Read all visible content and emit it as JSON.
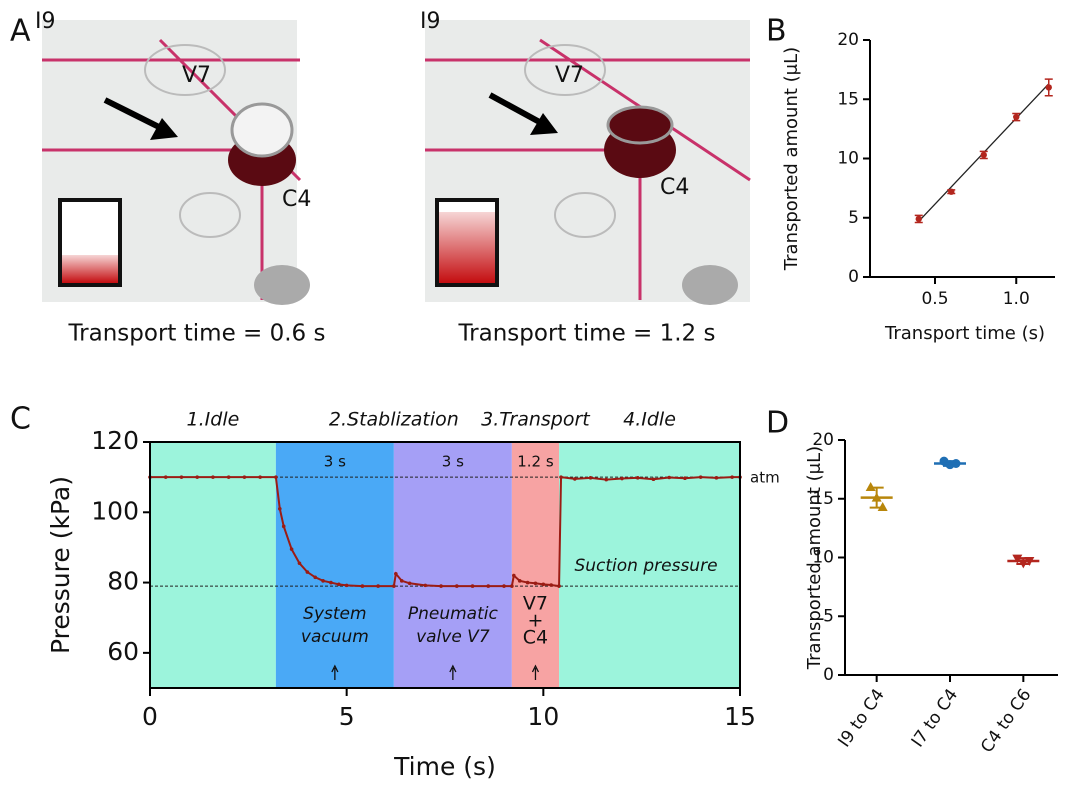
{
  "figure": {
    "panel_labels": [
      "A",
      "B",
      "C",
      "D"
    ],
    "photos": [
      {
        "labels": [
          "I9",
          "V7",
          "C4"
        ],
        "caption": "Transport time = 0.6 s"
      },
      {
        "labels": [
          "I9",
          "V7",
          "C4"
        ],
        "caption": "Transport time = 1.2 s"
      }
    ]
  },
  "chart_data": [
    {
      "type": "scatter",
      "x": [
        0.4,
        0.6,
        0.8,
        1.0,
        1.2
      ],
      "values": [
        4.9,
        7.2,
        10.3,
        13.5,
        16.0
      ],
      "errors": [
        0.3,
        0.15,
        0.3,
        0.3,
        0.7
      ],
      "color": "#b3261e",
      "fit": {
        "x": [
          0.4,
          1.2
        ],
        "y": [
          4.7,
          16.3
        ]
      },
      "xlim": [
        0.1,
        1.3
      ],
      "ylim": [
        0,
        20
      ],
      "xticks": [
        0.5,
        {
          "value": 1,
          "label": "1.0"
        }
      ],
      "yticks": [
        0,
        5,
        10,
        15,
        20
      ],
      "xlabel": "Transport time (s)",
      "ylabel": "Transported amount (μL)"
    },
    {
      "type": "line",
      "x": [
        0,
        0.4,
        0.8,
        1.2,
        1.6,
        2.0,
        2.4,
        2.8,
        3.2,
        3.3,
        3.4,
        3.6,
        3.8,
        4.0,
        4.2,
        4.4,
        4.6,
        4.8,
        5.0,
        5.4,
        5.8,
        6.2,
        6.25,
        6.4,
        6.6,
        7.0,
        7.4,
        7.8,
        8.2,
        8.6,
        9.0,
        9.2,
        9.25,
        9.4,
        9.6,
        9.8,
        10.0,
        10.2,
        10.4,
        10.45,
        10.8,
        11.2,
        11.6,
        12.0,
        12.4,
        12.8,
        13.2,
        13.6,
        14.0,
        14.4,
        14.8,
        15
      ],
      "values": [
        110,
        110,
        110,
        110,
        110,
        110,
        110,
        110,
        110,
        101,
        96,
        89.5,
        85.5,
        83,
        81.5,
        80.5,
        80,
        79.5,
        79.2,
        79,
        79,
        79,
        82.5,
        80.5,
        79.8,
        79.2,
        79,
        79,
        79,
        79,
        79,
        79,
        82,
        80.5,
        80,
        79.8,
        79.5,
        79.3,
        79,
        110,
        109.5,
        109.8,
        109.3,
        109.6,
        109.8,
        109.4,
        109.9,
        109.7,
        110,
        109.8,
        110,
        110
      ],
      "color": "#9b1c14",
      "xlim": [
        0,
        15
      ],
      "ylim": [
        50,
        120
      ],
      "xticks": [
        0,
        5,
        10,
        15
      ],
      "yticks": [
        60,
        80,
        100,
        120
      ],
      "xlabel": "Time (s)",
      "ylabel": "Pressure (kPa)",
      "hlines": [
        110,
        79
      ],
      "regions": [
        {
          "start": 0,
          "end": 3.2,
          "color": "#9cf4dc"
        },
        {
          "start": 3.2,
          "end": 6.2,
          "color": "#4aa9f6",
          "duration": "3 s",
          "note": [
            "System",
            "vacuum"
          ]
        },
        {
          "start": 6.2,
          "end": 9.2,
          "color": "#a59ff6",
          "duration": "3 s",
          "note": [
            "Pneumatic",
            "valve V7"
          ]
        },
        {
          "start": 9.2,
          "end": 10.4,
          "color": "#f7a3a3",
          "duration": "1.2 s",
          "note": [
            "V7",
            "+",
            "C4"
          ]
        },
        {
          "start": 10.4,
          "end": 15,
          "color": "#9cf4dc"
        }
      ],
      "phases": [
        {
          "label": "1.Idle",
          "start": 0,
          "end": 3.2
        },
        {
          "label": "2.Stablization",
          "start": 3.2,
          "end": 9.2
        },
        {
          "label": "3.Transport",
          "start": 9.2,
          "end": 10.4
        },
        {
          "label": "4.Idle",
          "start": 10.4,
          "end": 15
        }
      ],
      "atm_label": "atm",
      "suction_label": "Suction pressure"
    },
    {
      "type": "dot",
      "categories": [
        "I9 to C4",
        "I7 to C4",
        "C4 to C6"
      ],
      "colors": [
        "#b8860b",
        "#1f6fb4",
        "#b3261e"
      ],
      "markers": [
        "triangle-up",
        "circle",
        "triangle-down"
      ],
      "points": [
        [
          16.0,
          15.1,
          14.3
        ],
        [
          18.2,
          17.9,
          18.0
        ],
        [
          9.9,
          9.5,
          9.7
        ]
      ],
      "means": [
        15.1,
        18.0,
        9.7
      ],
      "errors": [
        0.85,
        0.2,
        0.25
      ],
      "ylim": [
        0,
        20
      ],
      "yticks": [
        0,
        5,
        10,
        15,
        20
      ],
      "ylabel": "Transported amount (μL)"
    }
  ]
}
